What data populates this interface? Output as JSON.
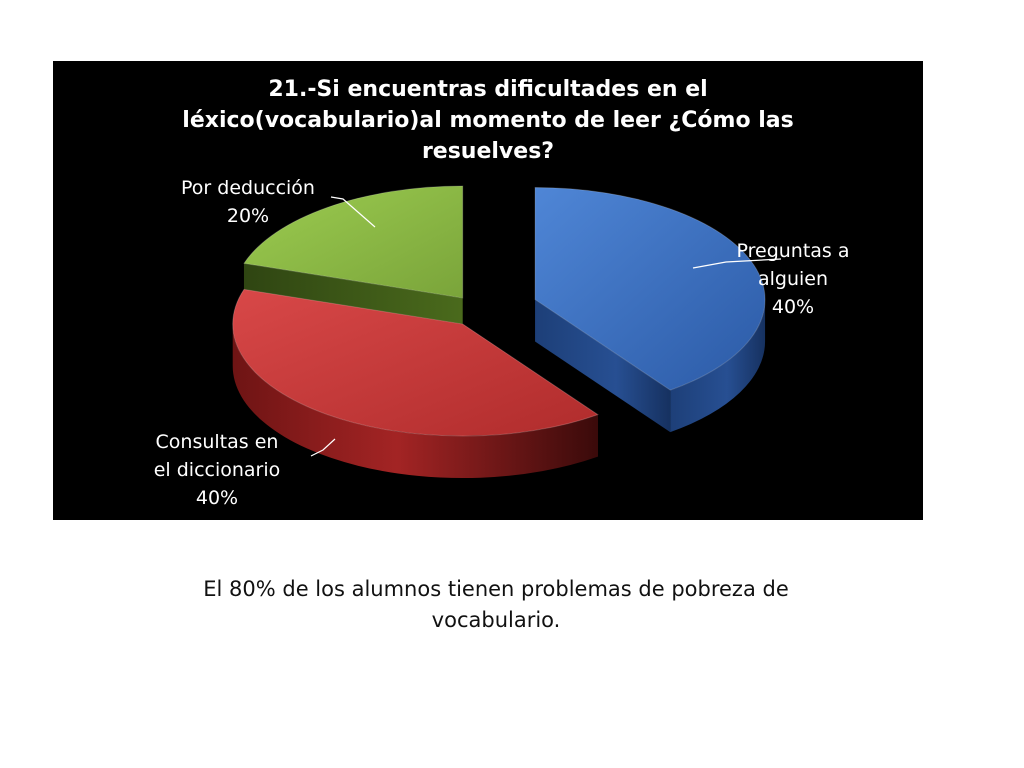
{
  "chart_data": {
    "type": "pie",
    "title_lines": [
      "21.-Si encuentras dificultades en el",
      "léxico(vocabulario)al momento de leer ¿Cómo las",
      "resuelves?"
    ],
    "categories": [
      "Preguntas a alguien",
      "Consultas en el diccionario",
      "Por deducción"
    ],
    "values": [
      40,
      40,
      20
    ],
    "data_labels": [
      {
        "lines": [
          "Preguntas a",
          "alguien",
          "40%"
        ]
      },
      {
        "lines": [
          "Consultas en",
          "el diccionario",
          "40%"
        ]
      },
      {
        "lines": [
          "Por deducción",
          "20%"
        ]
      }
    ],
    "colors": [
      "#3a6fbf",
      "#c73a3a",
      "#8db842"
    ],
    "style": "3d-exploded",
    "background": "#000000"
  },
  "caption": {
    "lines": [
      "El 80% de los alumnos tienen problemas de pobreza de",
      "vocabulario."
    ]
  }
}
